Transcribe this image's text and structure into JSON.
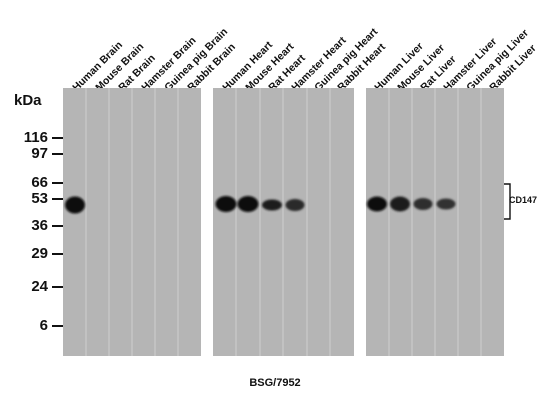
{
  "lanes": [
    "Human Brain",
    "Mouse Brain",
    "Rat Brain",
    "Hamster Brain",
    "Guinea pig Brain",
    "Rabbit Brain",
    "Human Heart",
    "Mouse Heart",
    "Rat Heart",
    "Hamster Heart",
    "Guinea pig Heart",
    "Rabbit Heart",
    "Human Liver",
    "Mouse Liver",
    "Rat Liver",
    "Hamster Liver",
    "Guinea pig Liver",
    "Rabbit Liver"
  ],
  "unit_label": "kDa",
  "markers": [
    "116",
    "97",
    "66",
    "53",
    "36",
    "29",
    "24",
    "6"
  ],
  "target_label": "CD147",
  "antibody_label": "BSG/7952",
  "colors": {
    "membrane": "#b5b5b5",
    "band": "#0b0b0b",
    "text": "#111111"
  }
}
